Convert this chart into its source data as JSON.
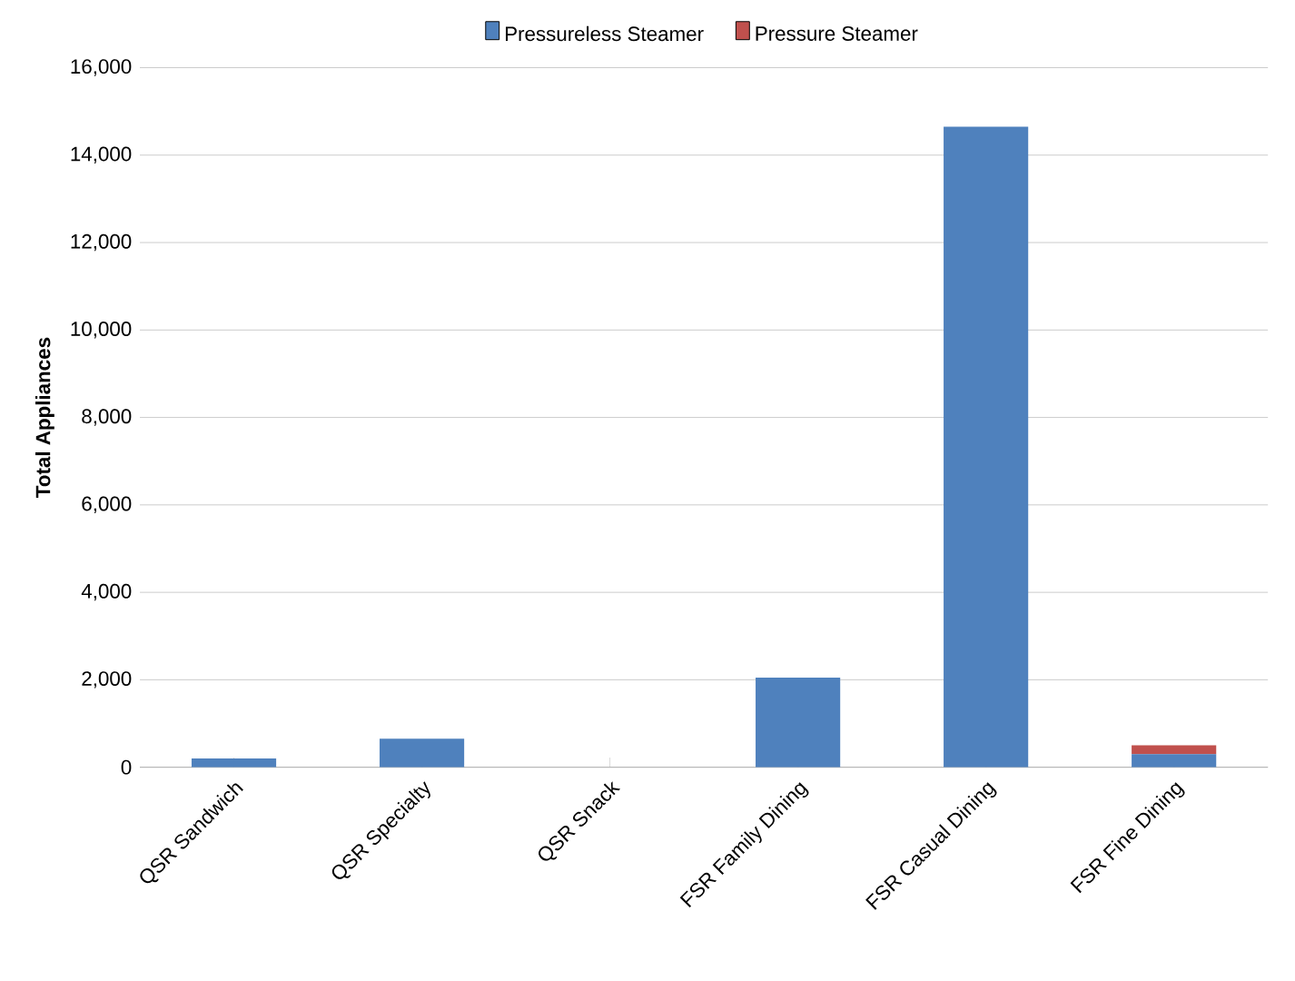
{
  "chart_data": {
    "type": "bar",
    "stacked": true,
    "ylabel": "Total Appliances",
    "categories": [
      "QSR Sandwich",
      "QSR Specialty",
      "QSR Snack",
      "FSR Family Dining",
      "FSR Casual Dining",
      "FSR Fine Dining"
    ],
    "series": [
      {
        "name": "Pressureless Steamer",
        "color": "#4f81bd",
        "values": [
          200,
          650,
          0,
          2050,
          14650,
          300
        ]
      },
      {
        "name": "Pressure Steamer",
        "color": "#c0504d",
        "values": [
          0,
          0,
          0,
          0,
          0,
          200
        ]
      }
    ],
    "ylim": [
      0,
      16000
    ],
    "yticks": [
      {
        "value": 0,
        "label": "0"
      },
      {
        "value": 2000,
        "label": "2,000"
      },
      {
        "value": 4000,
        "label": "4,000"
      },
      {
        "value": 6000,
        "label": "6,000"
      },
      {
        "value": 8000,
        "label": "8,000"
      },
      {
        "value": 10000,
        "label": "10,000"
      },
      {
        "value": 12000,
        "label": "12,000"
      },
      {
        "value": 14000,
        "label": "14,000"
      },
      {
        "value": 16000,
        "label": "16,000"
      }
    ],
    "grid": "y",
    "legend": "top"
  }
}
